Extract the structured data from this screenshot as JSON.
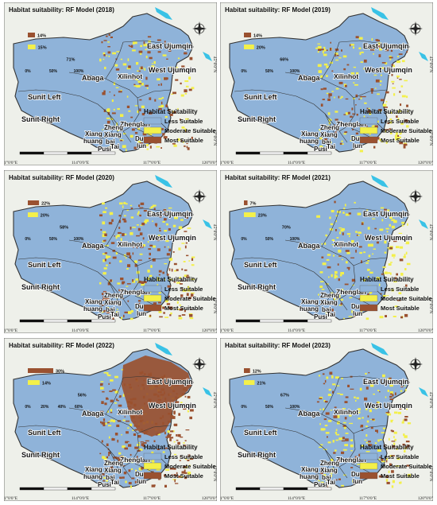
{
  "colors": {
    "less": "#8fb3d9",
    "moderate": "#f3f04a",
    "most": "#9a5130",
    "outline": "#333333",
    "basemap": "#eef0ea",
    "water": "#39c2e6"
  },
  "legend": {
    "title": "Habitat Suitability",
    "items": [
      "Less Suitable",
      "Moderate Suitable",
      "Most Suitable"
    ]
  },
  "regions": {
    "east_ujumqin": "East Ujumqin",
    "west_ujumqin": "West Ujumqin",
    "xilinhot": "Xilinhot",
    "abaga": "Abaga",
    "sunit_left": "Sunit Left",
    "sunit_right": "Sunit Right",
    "zhenglan": "Zhenglan",
    "zheng_xiang_bai_1": "Zheng",
    "zheng_xiang_bai_2": "Xiang",
    "zheng_xiang_bai_3": "bai",
    "xianghuang_1": "Xiang",
    "xianghuang_2": "huang",
    "duolun_1": "Duo",
    "duolun_2": "lun",
    "taipusi_1": "Tai",
    "taipusi_2": "Pusi"
  },
  "coords": {
    "lon_labels": [
      "111°0'0\"E",
      "114°0'0\"E",
      "117°0'0\"E",
      "120°0'0\"E"
    ],
    "lat_labels": [
      "45°0'0\"N",
      "42°0'0\"N"
    ]
  },
  "panels": [
    {
      "title": "Habitat suitability: RF Model (2018)",
      "bars": [
        {
          "category": "Most Suitable",
          "value": 14,
          "label": "14%"
        },
        {
          "category": "Moderate Suitable",
          "value": 15,
          "label": "15%"
        },
        {
          "category": "Less Suitable",
          "value": 71,
          "label": "71%"
        }
      ],
      "axis_ticks": [
        "0%",
        "50%",
        "100%"
      ]
    },
    {
      "title": "Habitat suitability: RF Model (2019)",
      "bars": [
        {
          "category": "Most Suitable",
          "value": 14,
          "label": "14%"
        },
        {
          "category": "Moderate Suitable",
          "value": 20,
          "label": "20%"
        },
        {
          "category": "Less Suitable",
          "value": 66,
          "label": "66%"
        }
      ],
      "axis_ticks": [
        "0%",
        "50%",
        "100%"
      ]
    },
    {
      "title": "Habitat suitability: RF Model (2020)",
      "bars": [
        {
          "category": "Most Suitable",
          "value": 22,
          "label": "22%"
        },
        {
          "category": "Moderate Suitable",
          "value": 20,
          "label": "20%"
        },
        {
          "category": "Less Suitable",
          "value": 58,
          "label": "58%"
        }
      ],
      "axis_ticks": [
        "0%",
        "50%",
        "100%"
      ]
    },
    {
      "title": "Habitat suitability: RF Model (2021)",
      "bars": [
        {
          "category": "Most Suitable",
          "value": 7,
          "label": "7%"
        },
        {
          "category": "Moderate Suitable",
          "value": 23,
          "label": "23%"
        },
        {
          "category": "Less Suitable",
          "value": 70,
          "label": "70%"
        }
      ],
      "axis_ticks": [
        "0%",
        "50%",
        "100%"
      ]
    },
    {
      "title": "Habitat suitability: RF Model (2022)",
      "bars": [
        {
          "category": "Most Suitable",
          "value": 30,
          "label": "30%"
        },
        {
          "category": "Moderate Suitable",
          "value": 14,
          "label": "14%"
        },
        {
          "category": "Less Suitable",
          "value": 56,
          "label": "56%"
        }
      ],
      "axis_ticks": [
        "0%",
        "20%",
        "40%",
        "60%"
      ]
    },
    {
      "title": "Habitat suitability: RF Model (2023)",
      "bars": [
        {
          "category": "Most Suitable",
          "value": 12,
          "label": "12%"
        },
        {
          "category": "Moderate Suitable",
          "value": 21,
          "label": "21%"
        },
        {
          "category": "Less Suitable",
          "value": 67,
          "label": "67%"
        }
      ],
      "axis_ticks": [
        "0%",
        "50%",
        "100%"
      ]
    }
  ]
}
